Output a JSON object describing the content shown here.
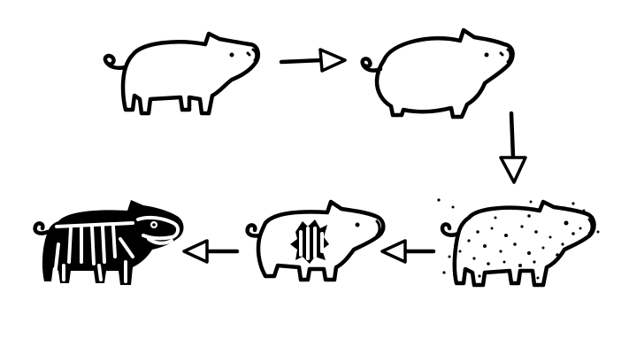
{
  "colors": {
    "ink": "#000000",
    "paper": "#ffffff"
  },
  "sequence": [
    {
      "stage": 1,
      "icon": "slim-pig-icon"
    },
    {
      "stage": 2,
      "icon": "fat-pig-icon"
    },
    {
      "stage": 3,
      "icon": "dirty-pig-icon"
    },
    {
      "stage": 4,
      "icon": "wounded-pig-icon"
    },
    {
      "stage": 5,
      "icon": "skeleton-pig-icon"
    }
  ],
  "arrows": [
    {
      "from": 1,
      "to": 2,
      "direction": "right"
    },
    {
      "from": 2,
      "to": 3,
      "direction": "down"
    },
    {
      "from": 3,
      "to": 4,
      "direction": "left"
    },
    {
      "from": 4,
      "to": 5,
      "direction": "left"
    }
  ]
}
